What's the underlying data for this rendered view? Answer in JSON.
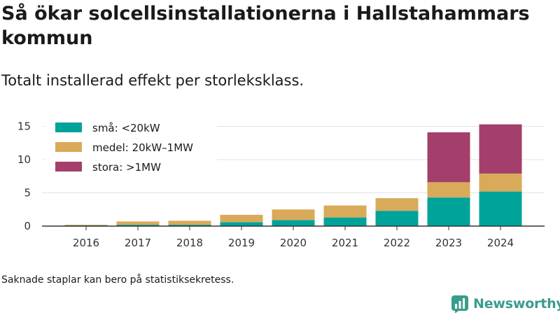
{
  "title": "Så ökar solcellsinstallationerna i Hallstahammars kommun",
  "subtitle": "Totalt installerad effekt per storleksklass.",
  "footnote": "Saknade staplar kan bero på statistiksekretess.",
  "brand": {
    "name": "Newsworthy",
    "icon": "newsworthy-logo-icon",
    "color": "#3a9c8d"
  },
  "chart_data": {
    "type": "bar",
    "stacked": true,
    "categories": [
      "2016",
      "2017",
      "2018",
      "2019",
      "2020",
      "2021",
      "2022",
      "2023",
      "2024"
    ],
    "series": [
      {
        "name": "små: <20kW",
        "color": "#00a39a",
        "values": [
          0.1,
          0.2,
          0.2,
          0.6,
          0.9,
          1.3,
          2.3,
          4.3,
          5.2
        ]
      },
      {
        "name": "medel: 20kW–1MW",
        "color": "#d9aa5a",
        "values": [
          0.1,
          0.5,
          0.6,
          1.1,
          1.6,
          1.8,
          1.9,
          2.3,
          2.7
        ]
      },
      {
        "name": "stora: >1MW",
        "color": "#a33f6a",
        "values": [
          0,
          0,
          0,
          0,
          0,
          0,
          0,
          7.5,
          7.4
        ]
      }
    ],
    "yticks": [
      0,
      5,
      10,
      15
    ],
    "ylim": [
      0,
      16.5
    ],
    "grid": true,
    "legend": "top-left"
  }
}
